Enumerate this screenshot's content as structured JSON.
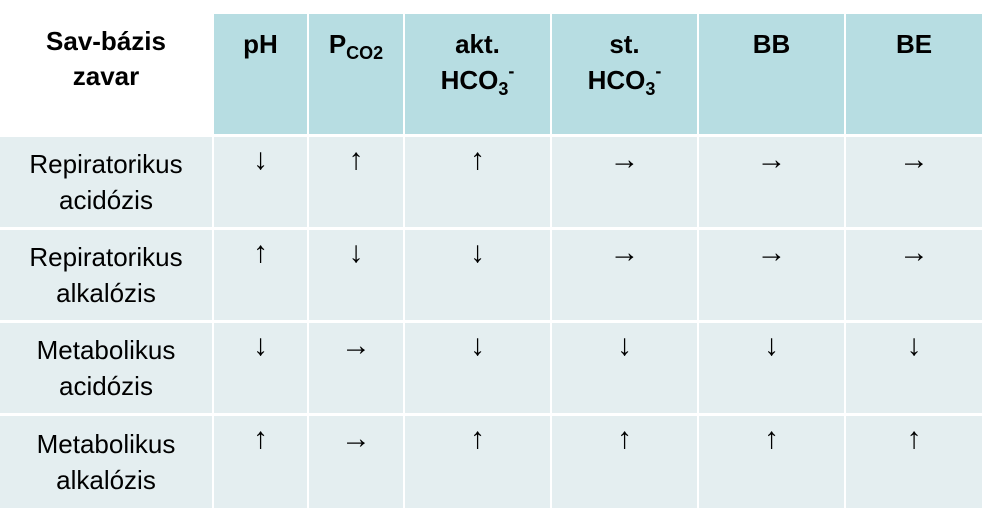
{
  "header": {
    "corner": [
      "Sav-bázis",
      "zavar"
    ],
    "columns": [
      {
        "main": "pH"
      },
      {
        "main": "P",
        "sub": "CO2"
      },
      {
        "line1": "akt.",
        "main": "HCO",
        "sub": "3",
        "sup": "-"
      },
      {
        "line1": "st.",
        "main": "HCO",
        "sub": "3",
        "sup": "-"
      },
      {
        "main": "BB"
      },
      {
        "main": "BE"
      }
    ]
  },
  "rows": [
    {
      "label": [
        "Repiratorikus",
        "acidózis"
      ],
      "values": [
        "↓",
        "↑",
        "↑",
        "→",
        "→",
        "→"
      ]
    },
    {
      "label": [
        "Repiratorikus",
        "alkalózis"
      ],
      "values": [
        "↑",
        "↓",
        "↓",
        "→",
        "→",
        "→"
      ]
    },
    {
      "label": [
        "Metabolikus",
        "acidózis"
      ],
      "values": [
        "↓",
        "→",
        "↓",
        "↓",
        "↓",
        "↓"
      ]
    },
    {
      "label": [
        "Metabolikus",
        "alkalózis"
      ],
      "values": [
        "↑",
        "→",
        "↑",
        "↑",
        "↑",
        "↑"
      ]
    }
  ],
  "colors": {
    "header_bg": "#b7dde2",
    "row_bg": "#e4eef0",
    "text": "#000000"
  }
}
